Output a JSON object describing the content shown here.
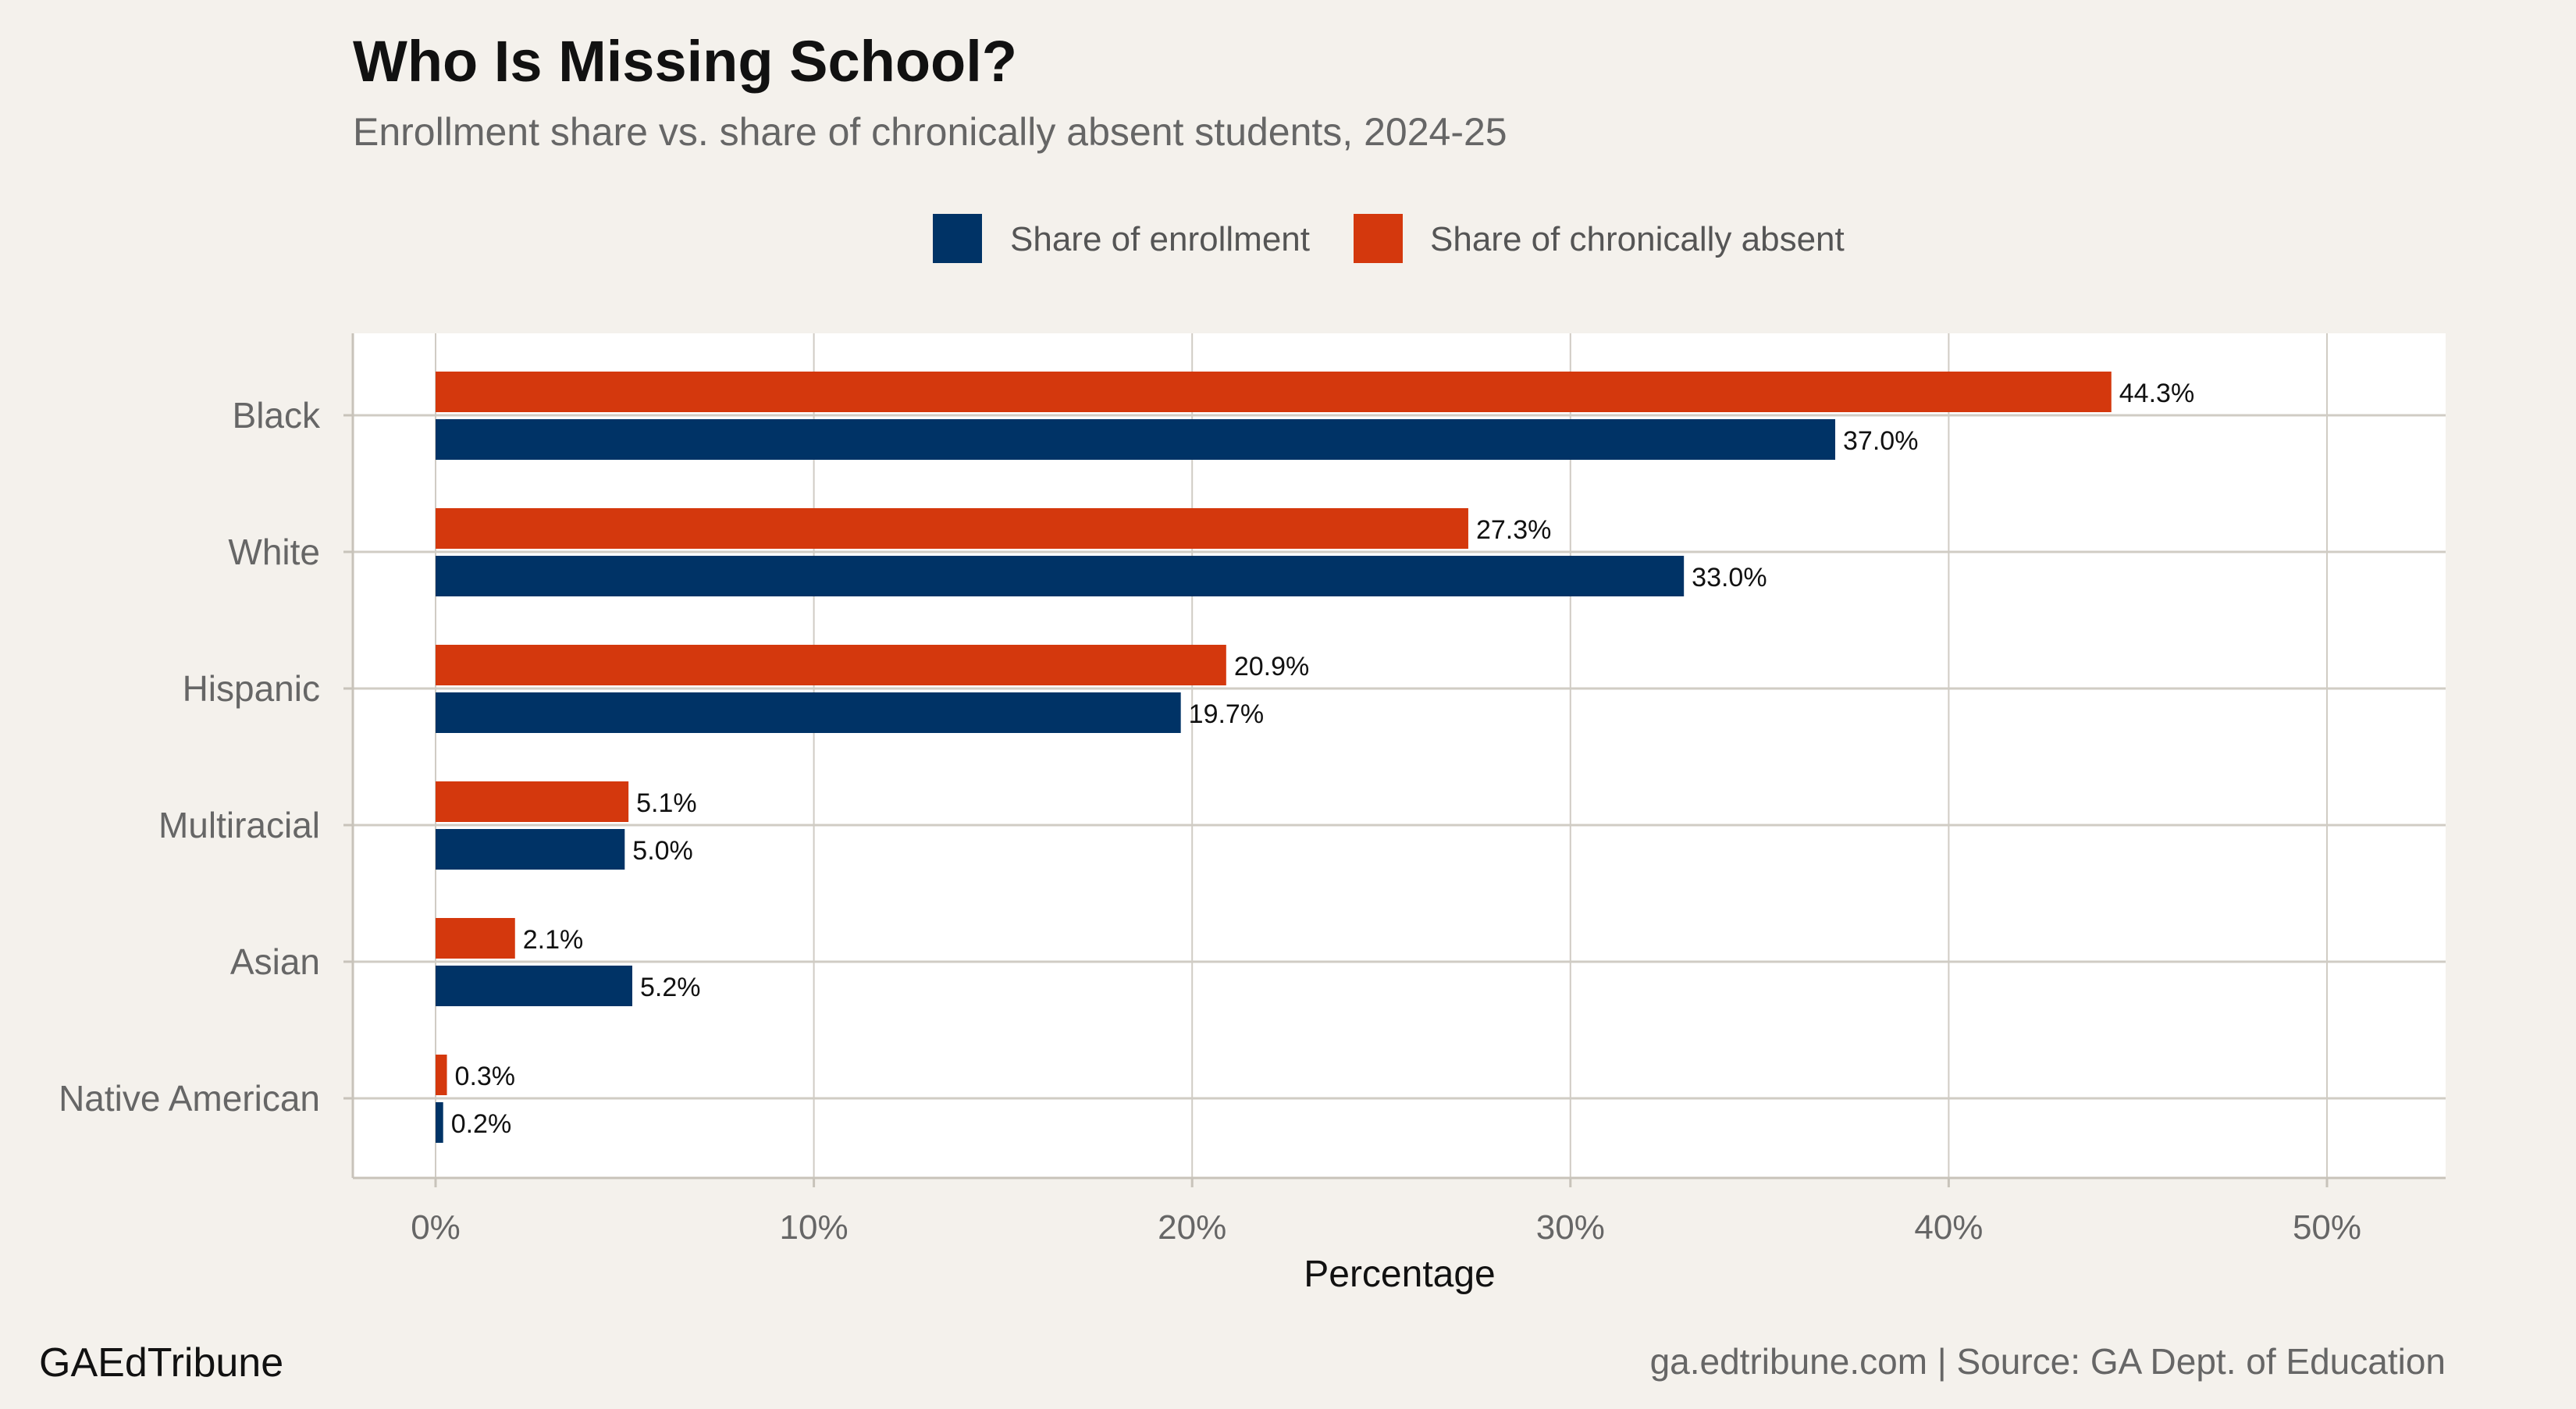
{
  "title": "Who Is Missing School?",
  "subtitle": "Enrollment share vs. share of chronically absent students, 2024-25",
  "footer": {
    "brand": "GAEdTribune",
    "source": "ga.edtribune.com | Source: GA Dept. of Education"
  },
  "chart_data": {
    "type": "bar",
    "orientation": "horizontal",
    "title": "Who Is Missing School?",
    "subtitle": "Enrollment share vs. share of chronically absent students, 2024-25",
    "xlabel": "Percentage",
    "ylabel": "",
    "xlim": [
      0,
      50
    ],
    "x_ticks": [
      "0%",
      "10%",
      "20%",
      "30%",
      "40%",
      "50%"
    ],
    "x_tick_values": [
      0,
      10,
      20,
      30,
      40,
      50
    ],
    "grid": true,
    "legend_position": "top",
    "categories": [
      "Black",
      "White",
      "Hispanic",
      "Multiracial",
      "Asian",
      "Native American"
    ],
    "series": [
      {
        "name": "Share of enrollment",
        "color": "#003366",
        "values": [
          37.0,
          33.0,
          19.7,
          5.0,
          5.2,
          0.2
        ],
        "labels": [
          "37.0%",
          "33.0%",
          "19.7%",
          "5.0%",
          "5.2%",
          "0.2%"
        ]
      },
      {
        "name": "Share of chronically absent",
        "color": "#d4380d",
        "values": [
          44.3,
          27.3,
          20.9,
          5.1,
          2.1,
          0.3
        ],
        "labels": [
          "44.3%",
          "27.3%",
          "20.9%",
          "5.1%",
          "2.1%",
          "0.3%"
        ]
      }
    ]
  }
}
